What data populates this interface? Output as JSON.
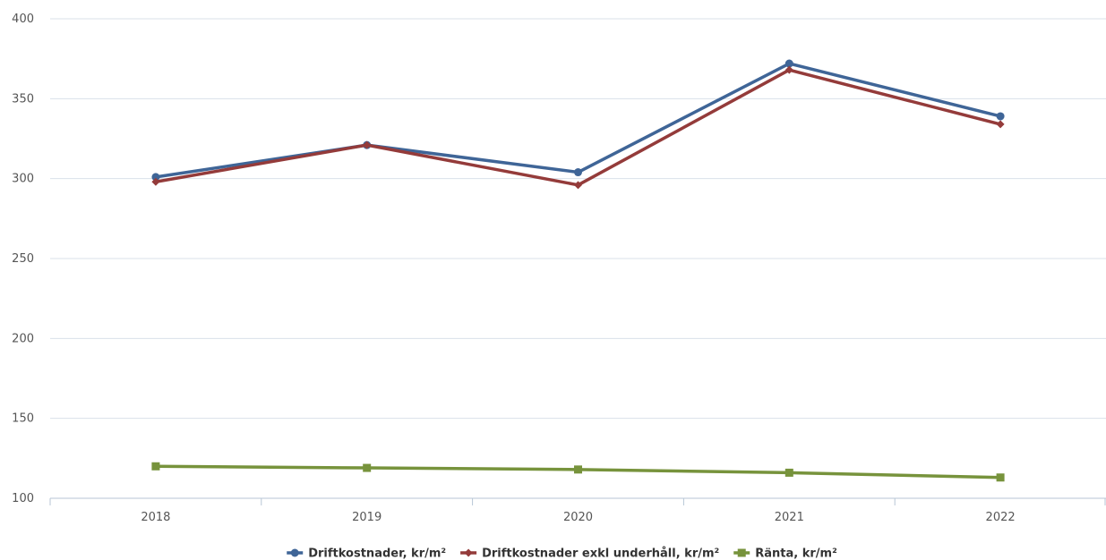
{
  "chart_data": {
    "type": "line",
    "title": "",
    "xlabel": "",
    "ylabel": "",
    "categories": [
      "2018",
      "2019",
      "2020",
      "2021",
      "2022"
    ],
    "ylim": [
      100,
      400
    ],
    "yticks": [
      100,
      150,
      200,
      250,
      300,
      350,
      400
    ],
    "grid": "horizontal",
    "legend_position": "bottom",
    "series": [
      {
        "name": "Driftkostnader, kr/m²",
        "values": [
          301,
          321,
          304,
          372,
          339
        ],
        "color": "#3f6597",
        "marker": "circle"
      },
      {
        "name": "Driftkostnader exkl underhåll, kr/m²",
        "values": [
          298,
          321,
          296,
          368,
          334
        ],
        "color": "#943b3a",
        "marker": "diamond"
      },
      {
        "name": "Ränta, kr/m²",
        "values": [
          120,
          119,
          118,
          116,
          113
        ],
        "color": "#77933c",
        "marker": "square"
      }
    ]
  }
}
